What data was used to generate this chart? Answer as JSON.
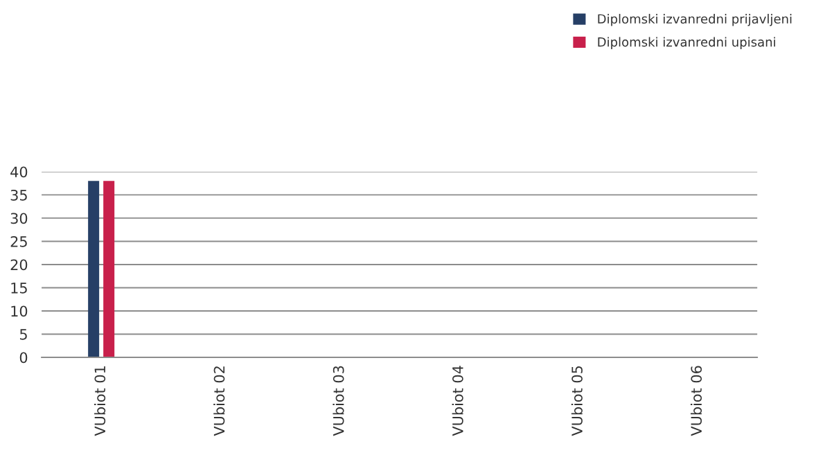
{
  "chart_data": {
    "type": "bar",
    "categories": [
      "VUbiot 01",
      "VUbiot 02",
      "VUbiot 03",
      "VUbiot 04",
      "VUbiot 05",
      "VUbiot 06"
    ],
    "series": [
      {
        "name": "Diplomski izvanredni prijavljeni",
        "color": "#263f66",
        "values": [
          38,
          null,
          null,
          null,
          null,
          null
        ]
      },
      {
        "name": "Diplomski izvanredni upisani",
        "color": "#c8204b",
        "values": [
          38,
          null,
          null,
          null,
          null,
          null
        ]
      }
    ],
    "ylim": [
      0,
      40
    ],
    "yticks": [
      0,
      5,
      10,
      15,
      20,
      25,
      30,
      35,
      40
    ],
    "grid": "y",
    "legend": "top right"
  }
}
